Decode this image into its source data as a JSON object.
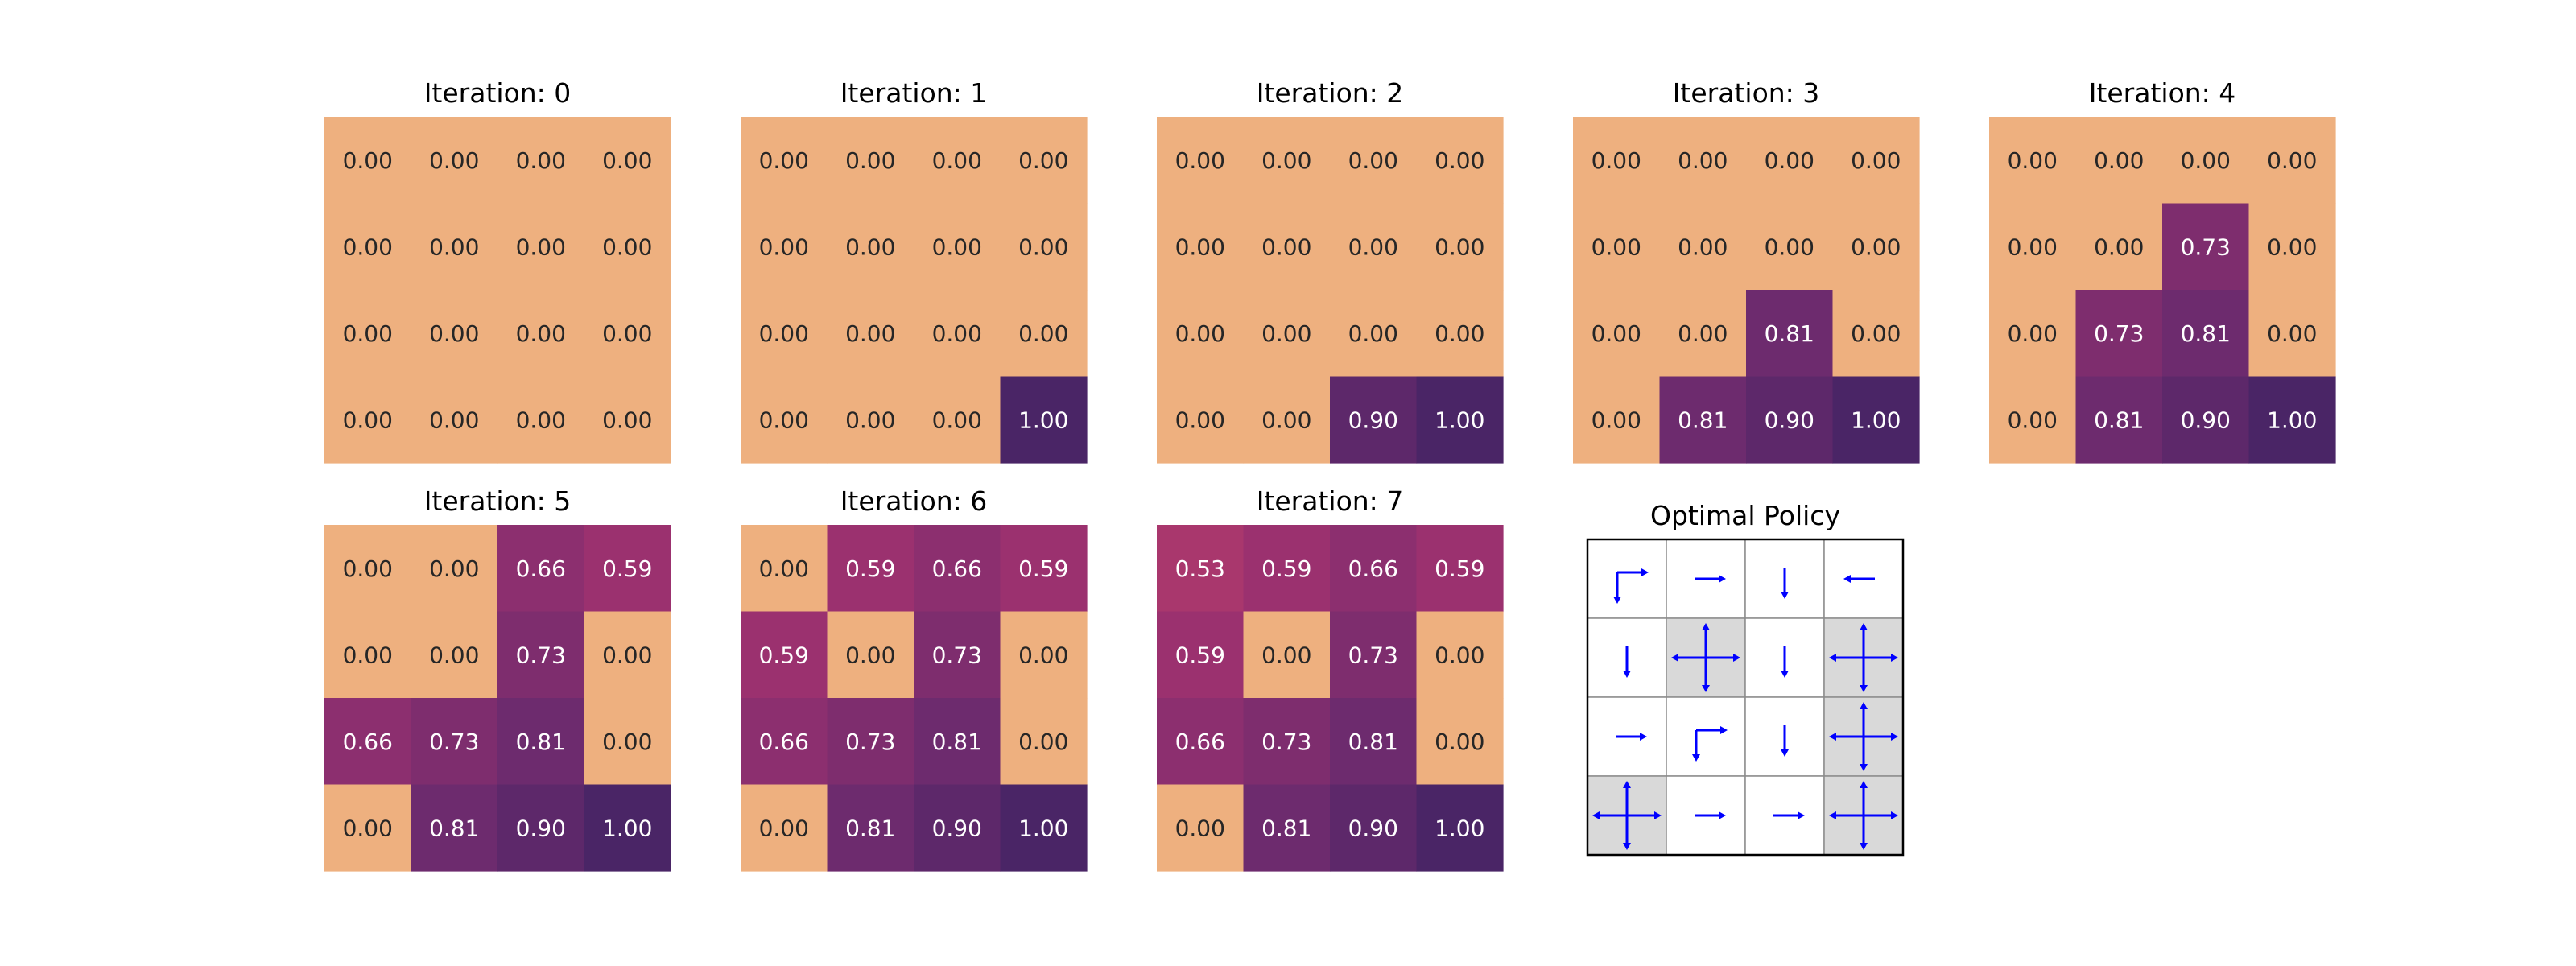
{
  "chart_data": [
    {
      "type": "heatmap",
      "title": "Iteration: 0",
      "values": [
        [
          0.0,
          0.0,
          0.0,
          0.0
        ],
        [
          0.0,
          0.0,
          0.0,
          0.0
        ],
        [
          0.0,
          0.0,
          0.0,
          0.0
        ],
        [
          0.0,
          0.0,
          0.0,
          0.0
        ]
      ],
      "value_range": [
        0,
        1
      ],
      "grid": false
    },
    {
      "type": "heatmap",
      "title": "Iteration: 1",
      "values": [
        [
          0.0,
          0.0,
          0.0,
          0.0
        ],
        [
          0.0,
          0.0,
          0.0,
          0.0
        ],
        [
          0.0,
          0.0,
          0.0,
          0.0
        ],
        [
          0.0,
          0.0,
          0.0,
          1.0
        ]
      ],
      "value_range": [
        0,
        1
      ],
      "grid": false
    },
    {
      "type": "heatmap",
      "title": "Iteration: 2",
      "values": [
        [
          0.0,
          0.0,
          0.0,
          0.0
        ],
        [
          0.0,
          0.0,
          0.0,
          0.0
        ],
        [
          0.0,
          0.0,
          0.0,
          0.0
        ],
        [
          0.0,
          0.0,
          0.9,
          1.0
        ]
      ],
      "value_range": [
        0,
        1
      ],
      "grid": false
    },
    {
      "type": "heatmap",
      "title": "Iteration: 3",
      "values": [
        [
          0.0,
          0.0,
          0.0,
          0.0
        ],
        [
          0.0,
          0.0,
          0.0,
          0.0
        ],
        [
          0.0,
          0.0,
          0.81,
          0.0
        ],
        [
          0.0,
          0.81,
          0.9,
          1.0
        ]
      ],
      "value_range": [
        0,
        1
      ],
      "grid": false
    },
    {
      "type": "heatmap",
      "title": "Iteration: 4",
      "values": [
        [
          0.0,
          0.0,
          0.0,
          0.0
        ],
        [
          0.0,
          0.0,
          0.73,
          0.0
        ],
        [
          0.0,
          0.73,
          0.81,
          0.0
        ],
        [
          0.0,
          0.81,
          0.9,
          1.0
        ]
      ],
      "value_range": [
        0,
        1
      ],
      "grid": false
    },
    {
      "type": "heatmap",
      "title": "Iteration: 5",
      "values": [
        [
          0.0,
          0.0,
          0.66,
          0.59
        ],
        [
          0.0,
          0.0,
          0.73,
          0.0
        ],
        [
          0.66,
          0.73,
          0.81,
          0.0
        ],
        [
          0.0,
          0.81,
          0.9,
          1.0
        ]
      ],
      "value_range": [
        0,
        1
      ],
      "grid": false
    },
    {
      "type": "heatmap",
      "title": "Iteration: 6",
      "values": [
        [
          0.0,
          0.59,
          0.66,
          0.59
        ],
        [
          0.59,
          0.0,
          0.73,
          0.0
        ],
        [
          0.66,
          0.73,
          0.81,
          0.0
        ],
        [
          0.0,
          0.81,
          0.9,
          1.0
        ]
      ],
      "value_range": [
        0,
        1
      ],
      "grid": false
    },
    {
      "type": "heatmap",
      "title": "Iteration: 7",
      "values": [
        [
          0.53,
          0.59,
          0.66,
          0.59
        ],
        [
          0.59,
          0.0,
          0.73,
          0.0
        ],
        [
          0.66,
          0.73,
          0.81,
          0.0
        ],
        [
          0.0,
          0.81,
          0.9,
          1.0
        ]
      ],
      "value_range": [
        0,
        1
      ],
      "grid": false
    },
    {
      "type": "table",
      "title": "Optimal Policy",
      "cells": [
        [
          [
            "down",
            "right"
          ],
          [
            "right"
          ],
          [
            "down"
          ],
          [
            "left"
          ]
        ],
        [
          [
            "down"
          ],
          [
            "up",
            "down",
            "left",
            "right"
          ],
          [
            "down"
          ],
          [
            "up",
            "down",
            "left",
            "right"
          ]
        ],
        [
          [
            "right"
          ],
          [
            "down",
            "right"
          ],
          [
            "down"
          ],
          [
            "up",
            "down",
            "left",
            "right"
          ]
        ],
        [
          [
            "up",
            "down",
            "left",
            "right"
          ],
          [
            "right"
          ],
          [
            "right"
          ],
          [
            "up",
            "down",
            "left",
            "right"
          ]
        ]
      ],
      "shaded_cells": [
        [
          1,
          1
        ],
        [
          1,
          3
        ],
        [
          2,
          3
        ],
        [
          3,
          0
        ],
        [
          3,
          3
        ]
      ],
      "arrow_color": "#0000ff",
      "shade_color": "#d9d9d9"
    }
  ],
  "colors": {
    "zero": "#eeb07f",
    "colormap": [
      "#eeb07f",
      "#e97c6c",
      "#c8446a",
      "#99306f",
      "#6f2b6e",
      "#4a2566"
    ],
    "text_light": "#ffffff",
    "text_dark": "#262626"
  }
}
